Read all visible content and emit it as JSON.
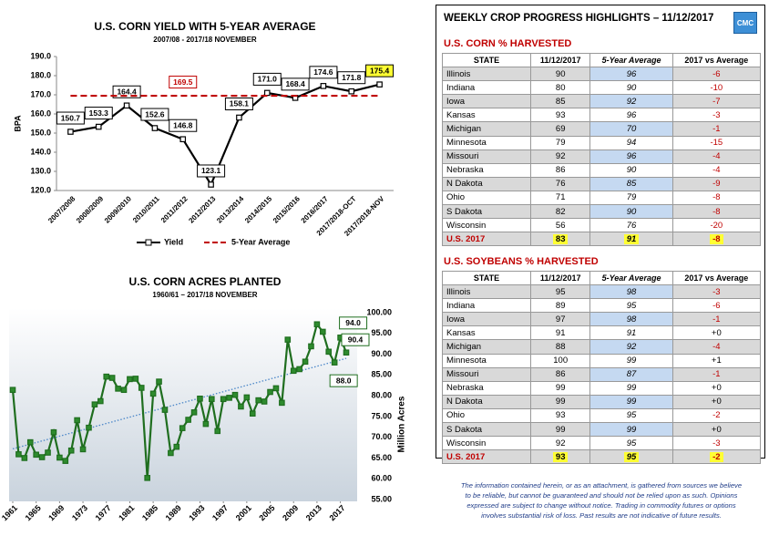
{
  "chart_data": [
    {
      "type": "line",
      "title": "U.S. CORN YIELD WITH 5-YEAR AVERAGE",
      "subtitle": "2007/08 - 2017/18 NOVEMBER",
      "ylabel": "BPA",
      "categories": [
        "2007/2008",
        "2008/2009",
        "2009/2010",
        "2010/2011",
        "2011/2012",
        "2012/2013",
        "2013/2014",
        "2014/2015",
        "2015/2016",
        "2016/2017",
        "2017/2018-OCT",
        "2017/2018-NOV"
      ],
      "series": [
        {
          "name": "Yield",
          "color": "#000000",
          "marker": "square",
          "marker_fill": "#ffffff",
          "dash": false,
          "values": [
            150.7,
            153.3,
            164.4,
            152.6,
            146.8,
            123.1,
            158.1,
            171.0,
            168.4,
            174.6,
            171.8,
            175.4
          ],
          "value_labels": [
            "150.7",
            "153.3",
            "164.4",
            "152.6",
            "146.8",
            "123.1",
            "158.1",
            "171.0",
            "168.4",
            "174.6",
            "171.8",
            "175.4"
          ]
        },
        {
          "name": "5-Year Average",
          "color": "#c00000",
          "marker": "none",
          "dash": true,
          "values": [
            169.5,
            169.5,
            169.5,
            169.5,
            169.5,
            169.5,
            169.5,
            169.5,
            169.5,
            169.5,
            169.5,
            169.5
          ],
          "value_labels": [
            null,
            null,
            null,
            null,
            "169.5",
            null,
            null,
            null,
            null,
            null,
            null,
            null
          ]
        }
      ],
      "label_highlight_index": 11,
      "label_highlight_color": "#ffff33",
      "ylim": [
        120,
        190
      ],
      "yticks": [
        {
          "value": 120,
          "label": "120.0"
        },
        {
          "value": 130,
          "label": "130.0"
        },
        {
          "value": 140,
          "label": "140.0"
        },
        {
          "value": 150,
          "label": "150.0"
        },
        {
          "value": 160,
          "label": "160.0"
        },
        {
          "value": 170,
          "label": "170.0"
        },
        {
          "value": 180,
          "label": "180.0"
        },
        {
          "value": 190,
          "label": "190.0"
        }
      ],
      "y_axis_side": "left",
      "legend": "bottom"
    },
    {
      "type": "line",
      "title": "U.S. CORN ACRES PLANTED",
      "subtitle": "1960/61 – 2017/18 NOVEMBER",
      "ylabel": "Million Acres",
      "x": [
        1961,
        1962,
        1963,
        1964,
        1965,
        1966,
        1967,
        1968,
        1969,
        1970,
        1971,
        1972,
        1973,
        1974,
        1975,
        1976,
        1977,
        1978,
        1979,
        1980,
        1981,
        1982,
        1983,
        1984,
        1985,
        1986,
        1987,
        1988,
        1989,
        1990,
        1991,
        1992,
        1993,
        1994,
        1995,
        1996,
        1997,
        1998,
        1999,
        2000,
        2001,
        2002,
        2003,
        2004,
        2005,
        2006,
        2007,
        2008,
        2009,
        2010,
        2011,
        2012,
        2013,
        2014,
        2015,
        2016,
        2017,
        2018
      ],
      "series": [
        {
          "color": "#1f6e1f",
          "marker": "square",
          "marker_fill": "#2e8b2e",
          "dash": false,
          "values": [
            81.4,
            65.9,
            65.0,
            68.8,
            65.8,
            65.2,
            66.3,
            71.2,
            65.1,
            64.3,
            66.8,
            74.1,
            67.1,
            72.3,
            77.9,
            78.7,
            84.6,
            84.3,
            81.7,
            81.4,
            84.0,
            84.1,
            81.9,
            60.2,
            80.5,
            83.4,
            76.6,
            66.2,
            67.7,
            72.2,
            74.2,
            76.0,
            79.3,
            73.2,
            79.2,
            71.5,
            79.2,
            79.5,
            80.2,
            77.4,
            79.6,
            75.7,
            78.9,
            78.6,
            80.9,
            81.8,
            78.3,
            93.5,
            86.0,
            86.4,
            88.2,
            91.9,
            97.2,
            95.4,
            90.6,
            88.0,
            94.0,
            90.4
          ],
          "value_labels": [
            null,
            null,
            null,
            null,
            null,
            null,
            null,
            null,
            null,
            null,
            null,
            null,
            null,
            null,
            null,
            null,
            null,
            null,
            null,
            null,
            null,
            null,
            null,
            null,
            null,
            null,
            null,
            null,
            null,
            null,
            null,
            null,
            null,
            null,
            null,
            null,
            null,
            null,
            null,
            null,
            null,
            null,
            null,
            null,
            null,
            null,
            null,
            null,
            null,
            null,
            null,
            null,
            null,
            null,
            null,
            "88.0",
            "94.0",
            "90.4"
          ]
        }
      ],
      "trend": {
        "x": [
          1961,
          2018
        ],
        "values": [
          67.2,
          89.0
        ],
        "color": "#4a86c8"
      },
      "xlim": [
        1961,
        2018
      ],
      "xticks": [
        1961,
        1965,
        1969,
        1973,
        1977,
        1981,
        1985,
        1989,
        1993,
        1997,
        2001,
        2005,
        2009,
        2013,
        2017
      ],
      "ylim": [
        55,
        100
      ],
      "yticks": [
        {
          "value": 55,
          "label": "55.00"
        },
        {
          "value": 60,
          "label": "60.00"
        },
        {
          "value": 65,
          "label": "65.00"
        },
        {
          "value": 70,
          "label": "70.00"
        },
        {
          "value": 75,
          "label": "75.00"
        },
        {
          "value": 80,
          "label": "80.00"
        },
        {
          "value": 85,
          "label": "85.00"
        },
        {
          "value": 90,
          "label": "90.00"
        },
        {
          "value": 95,
          "label": "95.00"
        },
        {
          "value": 100,
          "label": "100.00"
        }
      ],
      "y_axis_side": "right"
    }
  ],
  "header": {
    "title": "WEEKLY CROP PROGRESS HIGHLIGHTS – 11/12/2017",
    "logo": "CMC"
  },
  "tables": [
    {
      "title": "U.S. CORN % HARVESTED",
      "columns": [
        "STATE",
        "11/12/2017",
        "5-Year Average",
        "2017 vs Average"
      ],
      "rows": [
        [
          "Illinois",
          "90",
          "96",
          "-6"
        ],
        [
          "Indiana",
          "80",
          "90",
          "-10"
        ],
        [
          "Iowa",
          "85",
          "92",
          "-7"
        ],
        [
          "Kansas",
          "93",
          "96",
          "-3"
        ],
        [
          "Michigan",
          "69",
          "70",
          "-1"
        ],
        [
          "Minnesota",
          "79",
          "94",
          "-15"
        ],
        [
          "Missouri",
          "92",
          "96",
          "-4"
        ],
        [
          "Nebraska",
          "86",
          "90",
          "-4"
        ],
        [
          "N Dakota",
          "76",
          "85",
          "-9"
        ],
        [
          "Ohio",
          "71",
          "79",
          "-8"
        ],
        [
          "S Dakota",
          "82",
          "90",
          "-8"
        ],
        [
          "Wisconsin",
          "56",
          "76",
          "-20"
        ]
      ],
      "total": [
        "U.S. 2017",
        "83",
        "91",
        "-8"
      ]
    },
    {
      "title": "U.S. SOYBEANS % HARVESTED",
      "columns": [
        "STATE",
        "11/12/2017",
        "5-Year Average",
        "2017 vs Average"
      ],
      "rows": [
        [
          "Illinois",
          "95",
          "98",
          "-3"
        ],
        [
          "Indiana",
          "89",
          "95",
          "-6"
        ],
        [
          "Iowa",
          "97",
          "98",
          "-1"
        ],
        [
          "Kansas",
          "91",
          "91",
          "+0"
        ],
        [
          "Michigan",
          "88",
          "92",
          "-4"
        ],
        [
          "Minnesota",
          "100",
          "99",
          "+1"
        ],
        [
          "Missouri",
          "86",
          "87",
          "-1"
        ],
        [
          "Nebraska",
          "99",
          "99",
          "+0"
        ],
        [
          "N Dakota",
          "99",
          "99",
          "+0"
        ],
        [
          "Ohio",
          "93",
          "95",
          "-2"
        ],
        [
          "S Dakota",
          "99",
          "99",
          "+0"
        ],
        [
          "Wisconsin",
          "92",
          "95",
          "-3"
        ]
      ],
      "total": [
        "U.S. 2017",
        "93",
        "95",
        "-2"
      ]
    }
  ],
  "disclaimer": [
    "The information contained herein, or as an attachment, is gathered from sources we believe",
    "to be reliable, but cannot be guaranteed and should not be relied upon as such. Opinions",
    "expressed are subject to change without notice. Trading in commodity futures or options",
    "involves substantial risk of loss. Past results are not indicative of future results."
  ]
}
